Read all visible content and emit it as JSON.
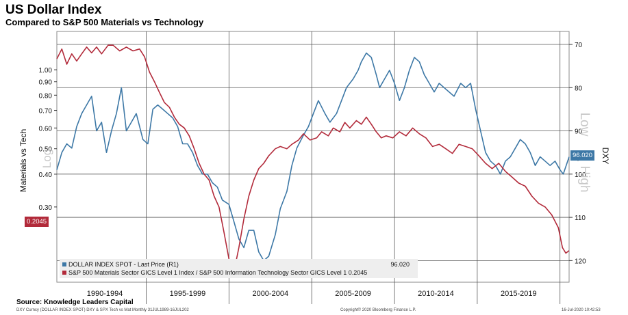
{
  "header": {
    "title": "US Dollar Index",
    "subtitle": "Compared to S&P 500 Materials vs Technology"
  },
  "footer": {
    "source": "Source:  Knowledge Leaders Capital",
    "left": "DXY Curncy (DOLLAR INDEX SPOT) DXY & SPX Tech vs Mat  Monthly 31JUL1989-16JUL202",
    "center": "Copyright© 2020 Bloomberg Finance L.P.",
    "right": "16-Jul-2020 10:42:53"
  },
  "legend": {
    "dxy_label": "DOLLAR INDEX SPOT - Last Price (R1)",
    "dxy_value": "96.020",
    "ratio_label": "S&P 500 Materials Sector GICS Level 1 Index / S&P 500 Information Technology Sector GICS Level 1",
    "ratio_value": "0.2045"
  },
  "tags": {
    "dxy": "96.020",
    "ratio": "0.2045"
  },
  "colors": {
    "dxy": "#3d78a6",
    "ratio": "#b22a3a",
    "grid": "#555555"
  },
  "chart_data": {
    "type": "line",
    "title": "US Dollar Index",
    "subtitle": "Compared to S&P 500 Materials vs Technology",
    "x_labels": [
      "1990-1994",
      "1995-1999",
      "2000-2004",
      "2005-2009",
      "2010-2014",
      "2015-2019"
    ],
    "x_range": [
      1989.6,
      2020.55
    ],
    "left_axis": {
      "label": "Materials vs Tech",
      "scale": "log",
      "scale_note": "Log",
      "range": [
        0.155,
        1.4
      ],
      "ticks": [
        0.3,
        0.4,
        0.5,
        0.6,
        0.7,
        0.8,
        0.9,
        1.0
      ],
      "tick_labels": [
        "0.30",
        "0.40",
        "0.50",
        "0.60",
        "0.70",
        "0.80",
        "0.90",
        "1.00"
      ]
    },
    "right_axis": {
      "label": "DXY",
      "inverted": true,
      "range": [
        67,
        125
      ],
      "ticks": [
        70,
        80,
        90,
        100,
        110,
        120
      ],
      "note_top": "Low",
      "note_bottom": "High"
    },
    "series": [
      {
        "name": "DOLLAR INDEX SPOT - Last Price (R1)",
        "axis": "right",
        "last": 96.02,
        "points": [
          [
            1989.6,
            99
          ],
          [
            1989.9,
            95
          ],
          [
            1990.2,
            93
          ],
          [
            1990.5,
            94
          ],
          [
            1990.8,
            89
          ],
          [
            1991.1,
            86
          ],
          [
            1991.4,
            84
          ],
          [
            1991.7,
            82
          ],
          [
            1992.0,
            90
          ],
          [
            1992.3,
            88
          ],
          [
            1992.6,
            95
          ],
          [
            1992.9,
            90
          ],
          [
            1993.2,
            86
          ],
          [
            1993.5,
            80
          ],
          [
            1993.8,
            90
          ],
          [
            1994.1,
            88
          ],
          [
            1994.4,
            86
          ],
          [
            1994.8,
            92
          ],
          [
            1995.1,
            93
          ],
          [
            1995.4,
            85
          ],
          [
            1995.7,
            84
          ],
          [
            1996.0,
            85
          ],
          [
            1996.3,
            86
          ],
          [
            1996.6,
            87
          ],
          [
            1996.9,
            89
          ],
          [
            1997.2,
            93
          ],
          [
            1997.5,
            93
          ],
          [
            1997.8,
            95
          ],
          [
            1998.1,
            98
          ],
          [
            1998.4,
            100
          ],
          [
            1998.7,
            100
          ],
          [
            1999.0,
            102
          ],
          [
            1999.3,
            103
          ],
          [
            1999.6,
            106
          ],
          [
            2000.0,
            107
          ],
          [
            2000.3,
            111
          ],
          [
            2000.6,
            115
          ],
          [
            2000.9,
            117
          ],
          [
            2001.2,
            113
          ],
          [
            2001.5,
            113
          ],
          [
            2001.8,
            118
          ],
          [
            2002.1,
            120
          ],
          [
            2002.4,
            119
          ],
          [
            2002.8,
            114
          ],
          [
            2003.1,
            108
          ],
          [
            2003.5,
            104
          ],
          [
            2003.8,
            98
          ],
          [
            2004.1,
            94
          ],
          [
            2004.5,
            91
          ],
          [
            2004.8,
            89
          ],
          [
            2005.1,
            86
          ],
          [
            2005.4,
            83
          ],
          [
            2005.8,
            86
          ],
          [
            2006.1,
            88
          ],
          [
            2006.5,
            86
          ],
          [
            2006.8,
            83
          ],
          [
            2007.1,
            80
          ],
          [
            2007.5,
            78
          ],
          [
            2007.8,
            76
          ],
          [
            2008.0,
            74
          ],
          [
            2008.3,
            72
          ],
          [
            2008.6,
            73
          ],
          [
            2008.9,
            77
          ],
          [
            2009.1,
            80
          ],
          [
            2009.4,
            78
          ],
          [
            2009.7,
            76
          ],
          [
            2010.0,
            79
          ],
          [
            2010.3,
            83
          ],
          [
            2010.6,
            80
          ],
          [
            2010.9,
            76
          ],
          [
            2011.2,
            73
          ],
          [
            2011.5,
            74
          ],
          [
            2011.8,
            77
          ],
          [
            2012.1,
            79
          ],
          [
            2012.4,
            81
          ],
          [
            2012.7,
            79
          ],
          [
            2013.0,
            80
          ],
          [
            2013.3,
            81
          ],
          [
            2013.6,
            82
          ],
          [
            2014.0,
            79
          ],
          [
            2014.3,
            80
          ],
          [
            2014.6,
            79
          ],
          [
            2014.9,
            85
          ],
          [
            2015.2,
            90
          ],
          [
            2015.5,
            95
          ],
          [
            2015.8,
            97
          ],
          [
            2016.1,
            98
          ],
          [
            2016.4,
            100
          ],
          [
            2016.7,
            97
          ],
          [
            2017.0,
            96
          ],
          [
            2017.3,
            94
          ],
          [
            2017.6,
            92
          ],
          [
            2017.9,
            93
          ],
          [
            2018.2,
            95
          ],
          [
            2018.5,
            98
          ],
          [
            2018.8,
            96
          ],
          [
            2019.1,
            97
          ],
          [
            2019.4,
            98
          ],
          [
            2019.7,
            97
          ],
          [
            2020.0,
            99
          ],
          [
            2020.2,
            100
          ],
          [
            2020.55,
            96.02
          ]
        ]
      },
      {
        "name": "S&P 500 Materials Sector GICS Level 1 Index / S&P 500 Information Technology Sector GICS Level 1",
        "axis": "left",
        "last": 0.2045,
        "points": [
          [
            1989.6,
            1.1
          ],
          [
            1989.9,
            1.2
          ],
          [
            1990.2,
            1.05
          ],
          [
            1990.5,
            1.15
          ],
          [
            1990.8,
            1.08
          ],
          [
            1991.1,
            1.15
          ],
          [
            1991.4,
            1.22
          ],
          [
            1991.7,
            1.16
          ],
          [
            1992.0,
            1.22
          ],
          [
            1992.3,
            1.15
          ],
          [
            1992.7,
            1.24
          ],
          [
            1993.0,
            1.24
          ],
          [
            1993.4,
            1.18
          ],
          [
            1993.8,
            1.22
          ],
          [
            1994.2,
            1.18
          ],
          [
            1994.6,
            1.2
          ],
          [
            1994.9,
            1.12
          ],
          [
            1995.2,
            0.98
          ],
          [
            1995.5,
            0.9
          ],
          [
            1995.8,
            0.82
          ],
          [
            1996.1,
            0.75
          ],
          [
            1996.4,
            0.72
          ],
          [
            1996.7,
            0.66
          ],
          [
            1997.0,
            0.62
          ],
          [
            1997.3,
            0.6
          ],
          [
            1997.6,
            0.56
          ],
          [
            1997.9,
            0.5
          ],
          [
            1998.2,
            0.44
          ],
          [
            1998.5,
            0.4
          ],
          [
            1998.8,
            0.38
          ],
          [
            1999.1,
            0.33
          ],
          [
            1999.4,
            0.3
          ],
          [
            1999.7,
            0.24
          ],
          [
            2000.0,
            0.19
          ],
          [
            2000.3,
            0.17
          ],
          [
            2000.6,
            0.21
          ],
          [
            2000.9,
            0.27
          ],
          [
            2001.2,
            0.33
          ],
          [
            2001.5,
            0.38
          ],
          [
            2001.8,
            0.42
          ],
          [
            2002.1,
            0.44
          ],
          [
            2002.4,
            0.47
          ],
          [
            2002.8,
            0.5
          ],
          [
            2003.1,
            0.51
          ],
          [
            2003.5,
            0.5
          ],
          [
            2003.8,
            0.52
          ],
          [
            2004.2,
            0.54
          ],
          [
            2004.5,
            0.57
          ],
          [
            2004.9,
            0.54
          ],
          [
            2005.3,
            0.55
          ],
          [
            2005.6,
            0.58
          ],
          [
            2006.0,
            0.56
          ],
          [
            2006.3,
            0.6
          ],
          [
            2006.7,
            0.58
          ],
          [
            2007.0,
            0.63
          ],
          [
            2007.3,
            0.6
          ],
          [
            2007.7,
            0.64
          ],
          [
            2008.0,
            0.62
          ],
          [
            2008.3,
            0.66
          ],
          [
            2008.6,
            0.62
          ],
          [
            2008.9,
            0.58
          ],
          [
            2009.2,
            0.55
          ],
          [
            2009.5,
            0.56
          ],
          [
            2009.9,
            0.55
          ],
          [
            2010.3,
            0.58
          ],
          [
            2010.7,
            0.56
          ],
          [
            2011.1,
            0.6
          ],
          [
            2011.5,
            0.57
          ],
          [
            2011.9,
            0.55
          ],
          [
            2012.3,
            0.51
          ],
          [
            2012.7,
            0.52
          ],
          [
            2013.1,
            0.5
          ],
          [
            2013.5,
            0.48
          ],
          [
            2013.9,
            0.52
          ],
          [
            2014.3,
            0.51
          ],
          [
            2014.7,
            0.5
          ],
          [
            2015.1,
            0.47
          ],
          [
            2015.5,
            0.44
          ],
          [
            2015.9,
            0.42
          ],
          [
            2016.3,
            0.44
          ],
          [
            2016.7,
            0.41
          ],
          [
            2017.1,
            0.39
          ],
          [
            2017.5,
            0.37
          ],
          [
            2017.9,
            0.36
          ],
          [
            2018.3,
            0.33
          ],
          [
            2018.7,
            0.31
          ],
          [
            2019.1,
            0.3
          ],
          [
            2019.5,
            0.28
          ],
          [
            2019.9,
            0.25
          ],
          [
            2020.15,
            0.21
          ],
          [
            2020.35,
            0.2
          ],
          [
            2020.55,
            0.2045
          ]
        ]
      }
    ]
  }
}
